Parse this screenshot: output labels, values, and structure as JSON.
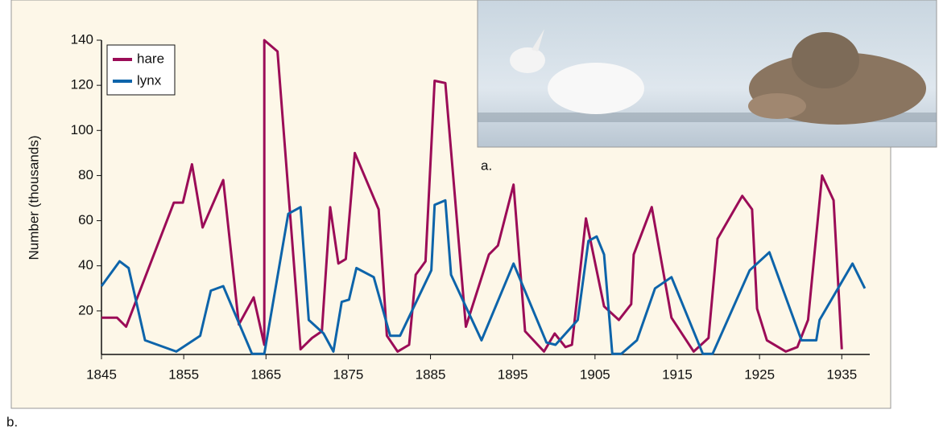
{
  "chart_data": {
    "type": "line",
    "y_label": "Number (thousands)",
    "photo_label": "a.",
    "panel_label": "b.",
    "xlim": [
      1845,
      1938.4
    ],
    "xticks": [
      1845,
      1855,
      1865,
      1875,
      1885,
      1895,
      1905,
      1915,
      1925,
      1935
    ],
    "ylim": [
      0,
      140
    ],
    "yticks": [
      20,
      40,
      60,
      80,
      100,
      120,
      140
    ],
    "legend": "top-left",
    "series": [
      {
        "name": "hare",
        "color": "#9b0c57",
        "x": [
          1845,
          1846.9,
          1848,
          1853.8,
          1854.9,
          1856,
          1857.3,
          1859.8,
          1861.7,
          1863.5,
          1864.8,
          1864.8,
          1866.4,
          1869.2,
          1870.6,
          1871.8,
          1872.8,
          1873.8,
          1874.7,
          1875.8,
          1878.7,
          1879.7,
          1881,
          1882.4,
          1883.2,
          1884.4,
          1885.5,
          1886.8,
          1889.3,
          1892.1,
          1893.2,
          1895.1,
          1896.5,
          1898.8,
          1900.1,
          1901.4,
          1902.2,
          1903.9,
          1906.1,
          1907.9,
          1909.4,
          1909.7,
          1911.9,
          1914.3,
          1917,
          1918.8,
          1919.9,
          1922.9,
          1924.1,
          1924.7,
          1925.9,
          1928.2,
          1929.6,
          1930.9,
          1932.6,
          1934,
          1935
        ],
        "values": [
          17,
          17,
          13,
          68,
          68,
          85,
          57,
          78,
          14,
          26,
          5,
          140,
          135,
          3,
          8,
          11,
          66,
          41,
          43,
          90,
          65,
          9,
          2,
          5,
          36,
          42,
          122,
          121,
          13,
          45,
          49,
          76,
          11,
          2,
          10,
          4,
          5,
          61,
          22,
          16,
          23,
          45,
          66,
          17,
          2,
          8,
          52,
          71,
          65,
          21,
          7,
          2,
          4,
          16,
          80,
          69,
          3
        ]
      },
      {
        "name": "lynx",
        "color": "#0d64aa",
        "x": [
          1845,
          1847.2,
          1848.3,
          1850.3,
          1854.1,
          1857,
          1858.3,
          1859.8,
          1863.3,
          1864.8,
          1867.7,
          1869.2,
          1870.2,
          1872,
          1873.2,
          1874.2,
          1875.1,
          1876,
          1878.1,
          1880.1,
          1881.3,
          1885.1,
          1885.5,
          1886.8,
          1887.5,
          1891.2,
          1895.1,
          1899.1,
          1900.2,
          1902.9,
          1904.2,
          1905.2,
          1906.1,
          1907.1,
          1908.2,
          1910.1,
          1912.3,
          1914.3,
          1918.1,
          1919.3,
          1923.8,
          1926.2,
          1930.1,
          1931.9,
          1932.3,
          1936.3,
          1937.8
        ],
        "values": [
          31,
          42,
          39,
          7,
          2,
          9,
          29,
          31,
          1,
          1,
          63,
          66,
          16,
          10,
          2,
          24,
          25,
          39,
          35,
          9,
          9,
          38,
          67,
          69,
          36,
          7,
          41,
          6,
          5,
          16,
          51,
          53,
          45,
          1,
          1,
          7,
          30,
          35,
          1,
          1,
          38,
          46,
          7,
          7,
          16,
          41,
          30
        ]
      }
    ]
  }
}
